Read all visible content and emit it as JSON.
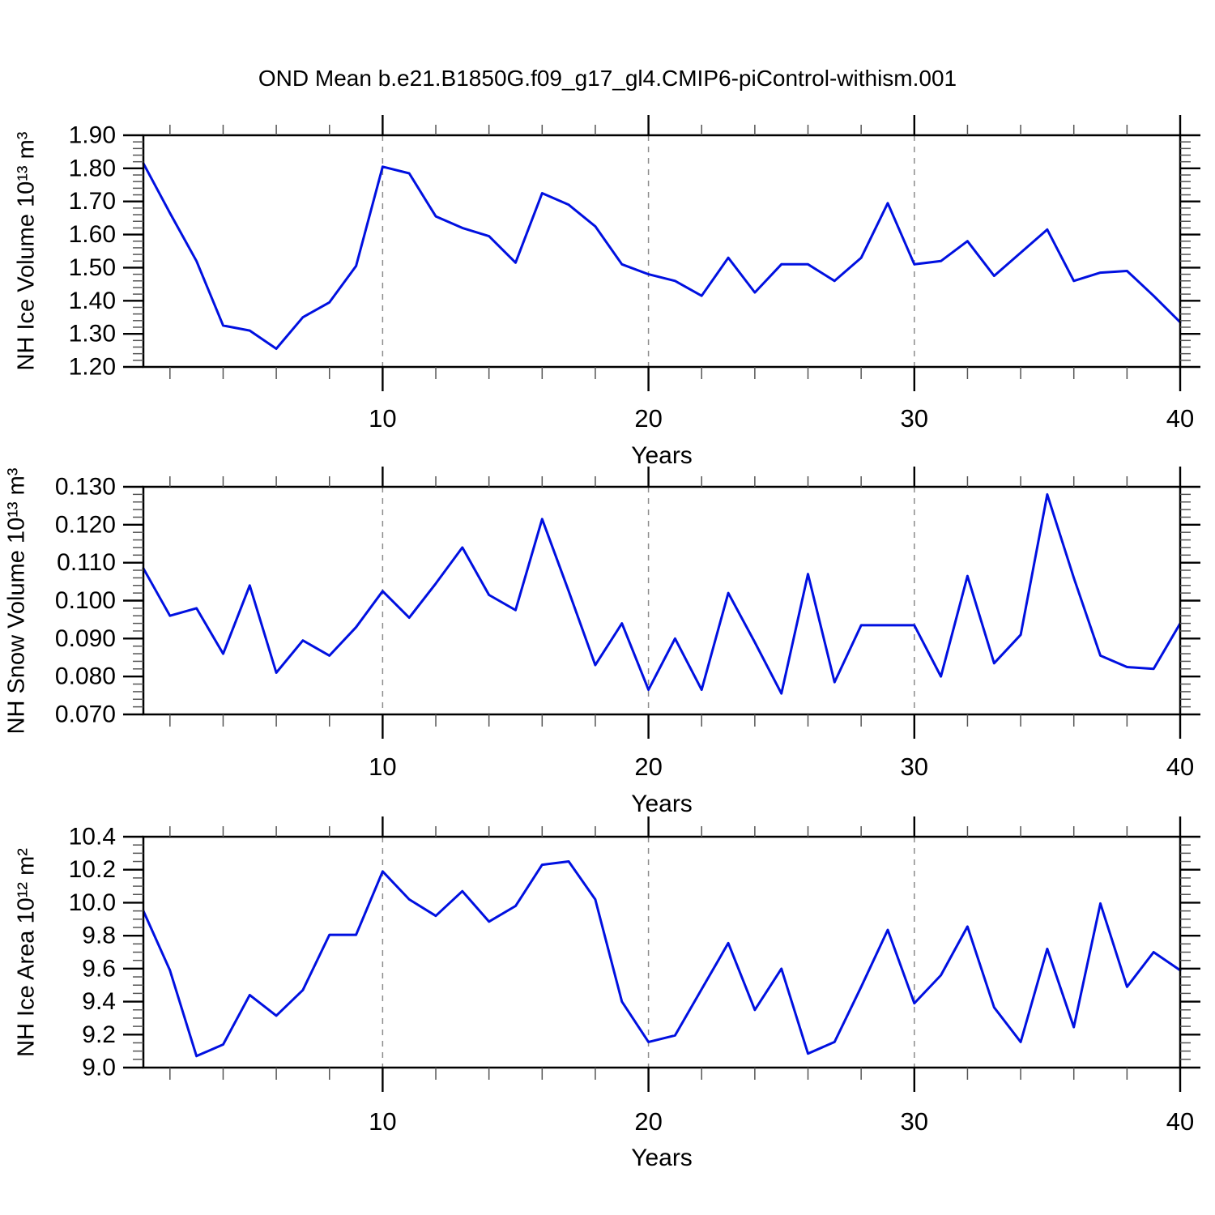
{
  "title": "OND Mean b.e21.B1850G.f09_g17_gl4.CMIP6-piControl-withism.001",
  "colors": {
    "line": "#0010e0",
    "axis": "#000000",
    "minor_tick": "#555555",
    "grid": "#8c8c8c",
    "background": "#ffffff",
    "text": "#000000"
  },
  "chart_data": [
    {
      "type": "line",
      "panel": 1,
      "ylabel": "NH Ice Volume 10¹³ m³",
      "xlabel": "Years",
      "x": [
        1,
        2,
        3,
        4,
        5,
        6,
        7,
        8,
        9,
        10,
        11,
        12,
        13,
        14,
        15,
        16,
        17,
        18,
        19,
        20,
        21,
        22,
        23,
        24,
        25,
        26,
        27,
        28,
        29,
        30,
        31,
        32,
        33,
        34,
        35,
        36,
        37,
        38,
        39,
        40
      ],
      "values": [
        1.815,
        1.665,
        1.52,
        1.325,
        1.31,
        1.255,
        1.35,
        1.395,
        1.505,
        1.805,
        1.785,
        1.655,
        1.62,
        1.595,
        1.515,
        1.725,
        1.69,
        1.625,
        1.51,
        1.48,
        1.46,
        1.415,
        1.53,
        1.425,
        1.51,
        1.51,
        1.46,
        1.53,
        1.695,
        1.51,
        1.52,
        1.58,
        1.475,
        1.545,
        1.615,
        1.46,
        1.485,
        1.49,
        1.415,
        1.335
      ],
      "xlim": [
        1,
        40
      ],
      "ylim": [
        1.2,
        1.9
      ],
      "ytick_labels": [
        "1.20",
        "1.30",
        "1.40",
        "1.50",
        "1.60",
        "1.70",
        "1.80",
        "1.90"
      ],
      "ytick_values": [
        1.2,
        1.3,
        1.4,
        1.5,
        1.6,
        1.7,
        1.8,
        1.9
      ],
      "y_minor_step": 0.02,
      "xtick_labels": [
        "10",
        "20",
        "30",
        "40"
      ],
      "xtick_values": [
        10,
        20,
        30,
        40
      ],
      "x_minor_step": 2,
      "grid_x": [
        10,
        20,
        30
      ],
      "grid_style": "dashed",
      "legend": "none"
    },
    {
      "type": "line",
      "panel": 2,
      "ylabel": "NH Snow Volume 10¹³ m³",
      "xlabel": "Years",
      "x": [
        1,
        2,
        3,
        4,
        5,
        6,
        7,
        8,
        9,
        10,
        11,
        12,
        13,
        14,
        15,
        16,
        17,
        18,
        19,
        20,
        21,
        22,
        23,
        24,
        25,
        26,
        27,
        28,
        29,
        30,
        31,
        32,
        33,
        34,
        35,
        36,
        37,
        38,
        39,
        40
      ],
      "values": [
        0.1085,
        0.096,
        0.098,
        0.086,
        0.104,
        0.081,
        0.0895,
        0.0855,
        0.093,
        0.1025,
        0.0955,
        0.1045,
        0.114,
        0.1015,
        0.0975,
        0.1215,
        0.1025,
        0.083,
        0.094,
        0.0765,
        0.09,
        0.0765,
        0.102,
        0.089,
        0.0755,
        0.107,
        0.0785,
        0.0935,
        0.0935,
        0.0935,
        0.08,
        0.1065,
        0.0835,
        0.091,
        0.128,
        0.106,
        0.0855,
        0.0825,
        0.082,
        0.094
      ],
      "xlim": [
        1,
        40
      ],
      "ylim": [
        0.07,
        0.13
      ],
      "ytick_labels": [
        "0.070",
        "0.080",
        "0.090",
        "0.100",
        "0.110",
        "0.120",
        "0.130"
      ],
      "ytick_values": [
        0.07,
        0.08,
        0.09,
        0.1,
        0.11,
        0.12,
        0.13
      ],
      "y_minor_step": 0.002,
      "xtick_labels": [
        "10",
        "20",
        "30",
        "40"
      ],
      "xtick_values": [
        10,
        20,
        30,
        40
      ],
      "x_minor_step": 2,
      "grid_x": [
        10,
        20,
        30
      ],
      "grid_style": "dashed",
      "legend": "none"
    },
    {
      "type": "line",
      "panel": 3,
      "ylabel": "NH Ice Area 10¹² m²",
      "xlabel": "Years",
      "x": [
        1,
        2,
        3,
        4,
        5,
        6,
        7,
        8,
        9,
        10,
        11,
        12,
        13,
        14,
        15,
        16,
        17,
        18,
        19,
        20,
        21,
        22,
        23,
        24,
        25,
        26,
        27,
        28,
        29,
        30,
        31,
        32,
        33,
        34,
        35,
        36,
        37,
        38,
        39,
        40
      ],
      "values": [
        9.95,
        9.59,
        9.07,
        9.14,
        9.44,
        9.315,
        9.47,
        9.805,
        9.805,
        10.19,
        10.02,
        9.92,
        10.07,
        9.885,
        9.98,
        10.23,
        10.25,
        10.02,
        9.4,
        9.155,
        9.195,
        9.475,
        9.755,
        9.35,
        9.6,
        9.085,
        9.155,
        9.49,
        9.835,
        9.39,
        9.56,
        9.855,
        9.365,
        9.155,
        9.72,
        9.245,
        9.995,
        9.49,
        9.7,
        9.59
      ],
      "xlim": [
        1,
        40
      ],
      "ylim": [
        9.0,
        10.4
      ],
      "ytick_labels": [
        "9.0",
        "9.2",
        "9.4",
        "9.6",
        "9.8",
        "10.0",
        "10.2",
        "10.4"
      ],
      "ytick_values": [
        9.0,
        9.2,
        9.4,
        9.6,
        9.8,
        10.0,
        10.2,
        10.4
      ],
      "y_minor_step": 0.05,
      "xtick_labels": [
        "10",
        "20",
        "30",
        "40"
      ],
      "xtick_values": [
        10,
        20,
        30,
        40
      ],
      "x_minor_step": 2,
      "grid_x": [
        10,
        20,
        30
      ],
      "grid_style": "dashed",
      "legend": "none"
    }
  ]
}
